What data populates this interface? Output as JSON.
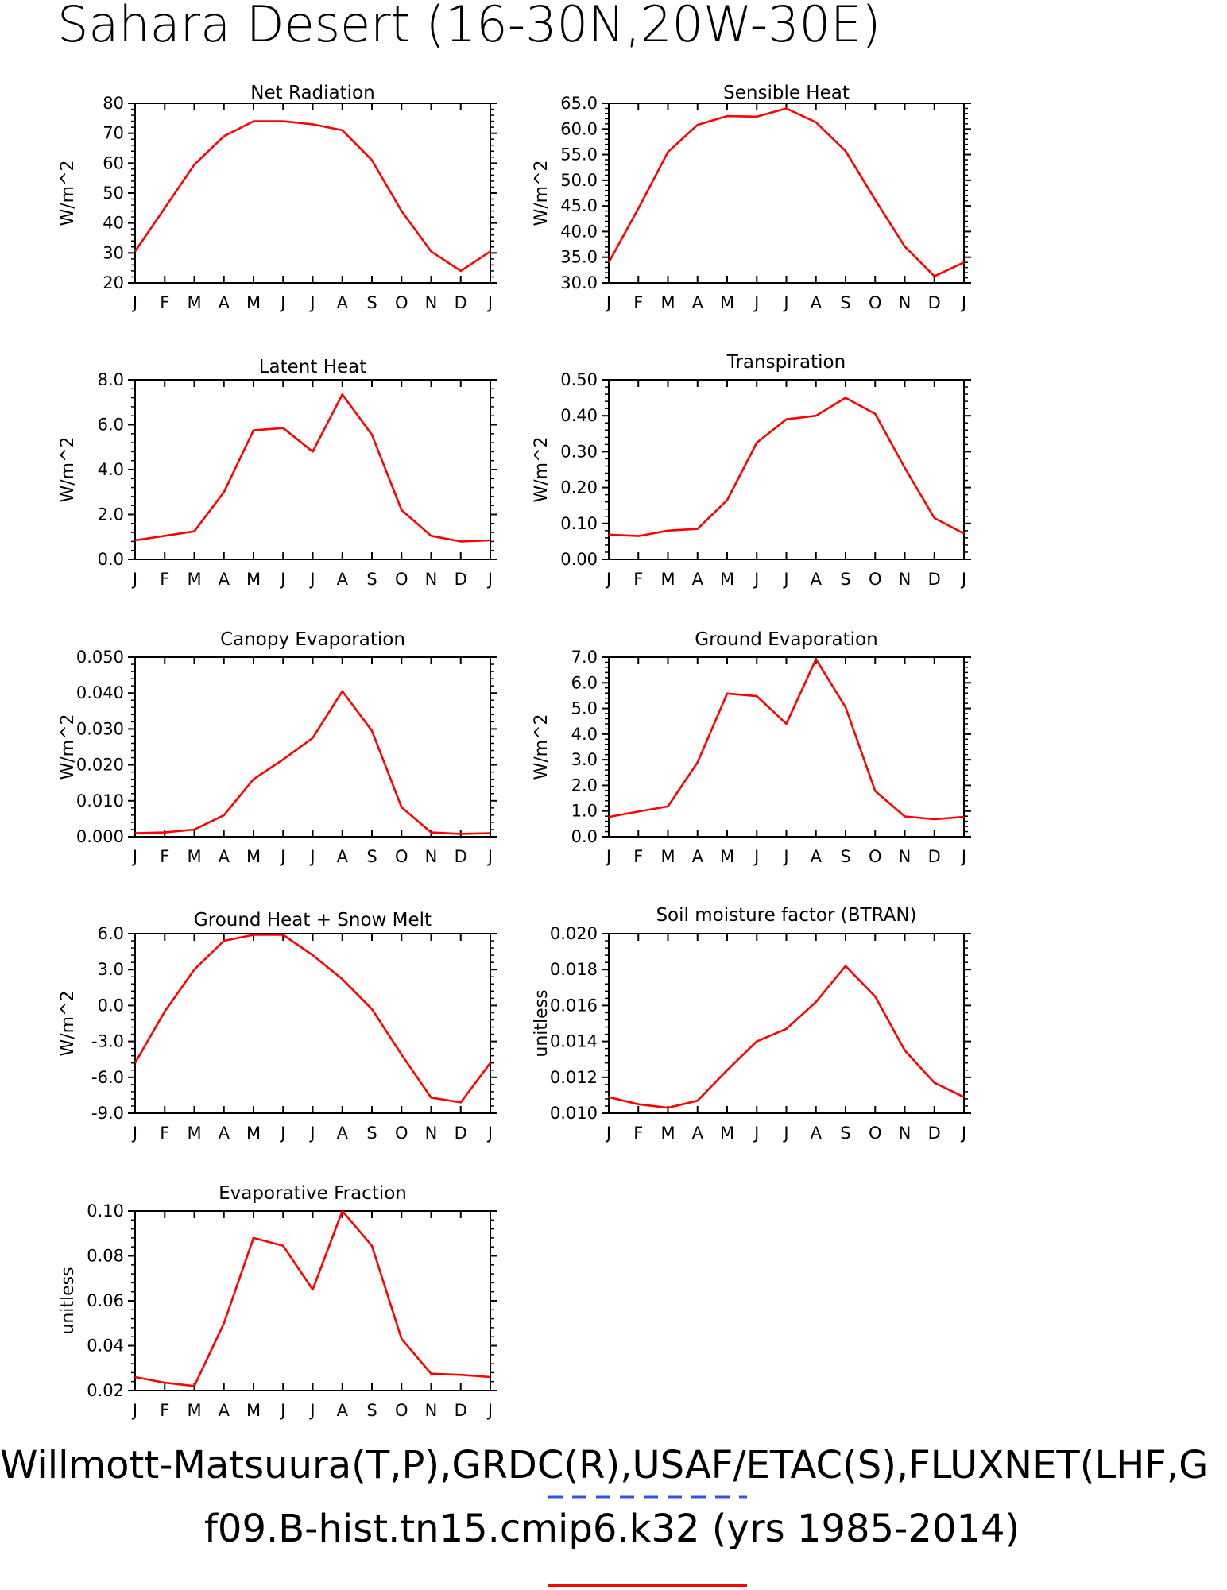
{
  "title": "Sahara Desert (16-30N,20W-30E)",
  "footer": {
    "line1": "Willmott-Matsuura(T,P),GRDC(R),USAF/ETAC(S),FLUXNET(LHF,G",
    "line2": "f09.B-hist.tn15.cmip6.k32 (yrs 1985-2014)"
  },
  "colors": {
    "obs_underline": "#3355dd",
    "model_line": "#ff0000"
  },
  "months": [
    "J",
    "F",
    "M",
    "A",
    "M",
    "J",
    "J",
    "A",
    "S",
    "O",
    "N",
    "D",
    "J"
  ],
  "chart_data": [
    {
      "type": "line",
      "title": "Net Radiation",
      "ylabel": "W/m^2",
      "ylim": [
        20,
        80
      ],
      "yticks": [
        "20",
        "30",
        "40",
        "50",
        "60",
        "70",
        "80"
      ],
      "series": [
        {
          "values": [
            30.5,
            45.0,
            59.5,
            69.0,
            74.0,
            74.0,
            73.0,
            71.0,
            61.0,
            44.0,
            30.5,
            24.0,
            30.5
          ]
        }
      ]
    },
    {
      "type": "line",
      "title": "Sensible Heat",
      "ylabel": "W/m^2",
      "ylim": [
        30,
        65
      ],
      "yticks": [
        "30.0",
        "35.0",
        "40.0",
        "45.0",
        "50.0",
        "55.0",
        "60.0",
        "65.0"
      ],
      "series": [
        {
          "values": [
            34.0,
            44.5,
            55.5,
            60.8,
            62.5,
            62.4,
            64.0,
            61.3,
            55.7,
            46.2,
            37.1,
            31.3,
            34.0
          ]
        }
      ]
    },
    {
      "type": "line",
      "title": "Latent Heat",
      "ylabel": "W/m^2",
      "ylim": [
        0,
        8
      ],
      "yticks": [
        "0.0",
        "2.0",
        "4.0",
        "6.0",
        "8.0"
      ],
      "series": [
        {
          "values": [
            0.85,
            1.05,
            1.25,
            3.0,
            5.75,
            5.85,
            4.8,
            7.35,
            5.55,
            2.2,
            1.05,
            0.8,
            0.85
          ]
        }
      ]
    },
    {
      "type": "line",
      "title": "Transpiration",
      "ylabel": "W/m^2",
      "ylim": [
        0,
        0.5
      ],
      "yticks": [
        "0.00",
        "0.10",
        "0.20",
        "0.30",
        "0.40",
        "0.50"
      ],
      "series": [
        {
          "values": [
            0.069,
            0.065,
            0.08,
            0.085,
            0.165,
            0.325,
            0.39,
            0.4,
            0.45,
            0.405,
            0.255,
            0.115,
            0.072
          ]
        }
      ]
    },
    {
      "type": "line",
      "title": "Canopy Evaporation",
      "ylabel": "W/m^2",
      "ylim": [
        0,
        0.05
      ],
      "yticks": [
        "0.000",
        "0.010",
        "0.020",
        "0.030",
        "0.040",
        "0.050"
      ],
      "series": [
        {
          "values": [
            0.001,
            0.0012,
            0.002,
            0.006,
            0.016,
            0.0215,
            0.0275,
            0.0405,
            0.0295,
            0.0082,
            0.0012,
            0.0008,
            0.001
          ]
        }
      ]
    },
    {
      "type": "line",
      "title": "Ground Evaporation",
      "ylabel": "W/m^2",
      "ylim": [
        0,
        7
      ],
      "yticks": [
        "0.0",
        "1.0",
        "2.0",
        "3.0",
        "4.0",
        "5.0",
        "6.0",
        "7.0"
      ],
      "series": [
        {
          "values": [
            0.77,
            0.98,
            1.18,
            2.9,
            5.58,
            5.48,
            4.4,
            6.92,
            5.05,
            1.78,
            0.79,
            0.68,
            0.77
          ]
        }
      ]
    },
    {
      "type": "line",
      "title": "Ground Heat + Snow Melt",
      "ylabel": "W/m^2",
      "ylim": [
        -9,
        6
      ],
      "yticks": [
        "-9.0",
        "-6.0",
        "-3.0",
        "0.0",
        "3.0",
        "6.0"
      ],
      "series": [
        {
          "values": [
            -4.8,
            -0.5,
            3.0,
            5.4,
            5.9,
            5.9,
            4.2,
            2.2,
            -0.3,
            -4.1,
            -7.7,
            -8.1,
            -4.8
          ]
        }
      ]
    },
    {
      "type": "line",
      "title": "Soil moisture factor (BTRAN)",
      "ylabel": "unitless",
      "ylim": [
        0.01,
        0.02
      ],
      "yticks": [
        "0.010",
        "0.012",
        "0.014",
        "0.016",
        "0.018",
        "0.020"
      ],
      "series": [
        {
          "values": [
            0.0109,
            0.0105,
            0.0103,
            0.0107,
            0.0124,
            0.014,
            0.0147,
            0.0162,
            0.0182,
            0.0165,
            0.0135,
            0.0117,
            0.0109
          ]
        }
      ]
    },
    {
      "type": "line",
      "title": "Evaporative Fraction",
      "ylabel": "unitless",
      "ylim": [
        0.02,
        0.1
      ],
      "yticks": [
        "0.02",
        "0.04",
        "0.06",
        "0.08",
        "0.10"
      ],
      "series": [
        {
          "values": [
            0.026,
            0.0235,
            0.022,
            0.05,
            0.088,
            0.0845,
            0.065,
            0.1,
            0.0845,
            0.043,
            0.0275,
            0.027,
            0.026
          ]
        }
      ]
    }
  ]
}
